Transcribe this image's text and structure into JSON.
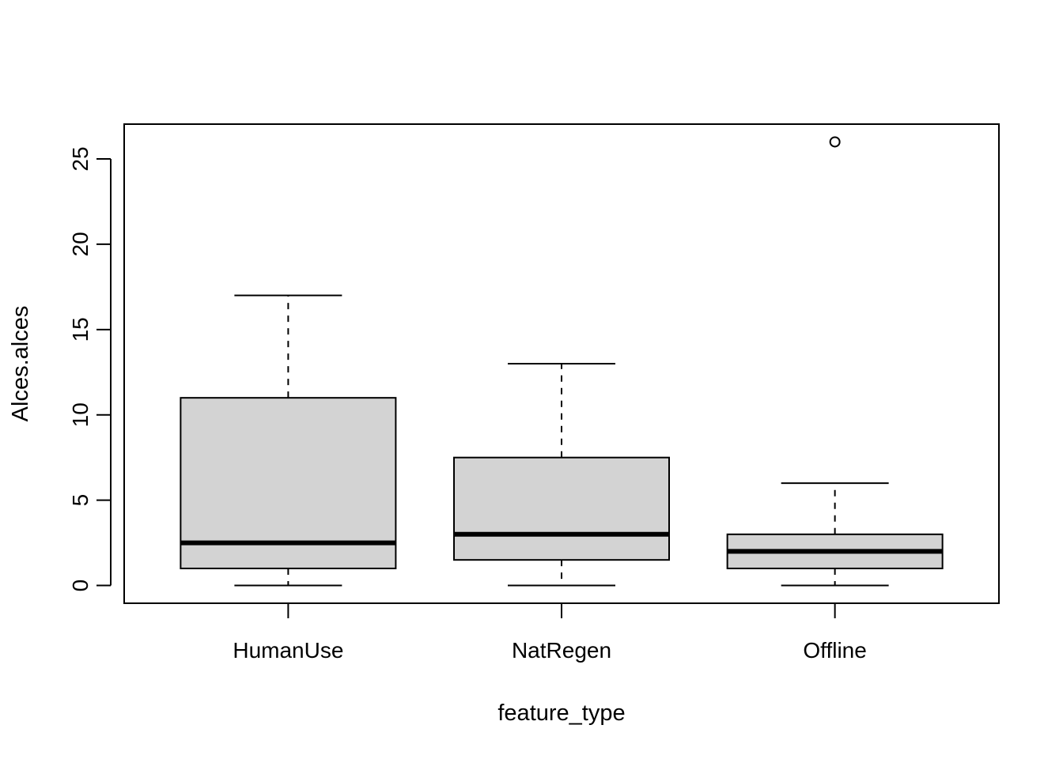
{
  "chart_data": {
    "type": "boxplot",
    "xlabel": "feature_type",
    "ylabel": "Alces.alces",
    "categories": [
      "HumanUse",
      "NatRegen",
      "Offline"
    ],
    "boxes": [
      {
        "category": "HumanUse",
        "whisker_low": 0,
        "q1": 1,
        "median": 2.5,
        "q3": 11,
        "whisker_high": 17,
        "outliers": []
      },
      {
        "category": "NatRegen",
        "whisker_low": 0,
        "q1": 1.5,
        "median": 3,
        "q3": 7.5,
        "whisker_high": 13,
        "outliers": []
      },
      {
        "category": "Offline",
        "whisker_low": 0,
        "q1": 1,
        "median": 2,
        "q3": 3,
        "whisker_high": 6,
        "outliers": [
          26
        ]
      }
    ],
    "ylim": [
      -1.04,
      27.04
    ],
    "y_ticks": [
      0,
      5,
      10,
      15,
      20,
      25
    ],
    "box_fill": "#d3d3d3",
    "grid": false
  }
}
